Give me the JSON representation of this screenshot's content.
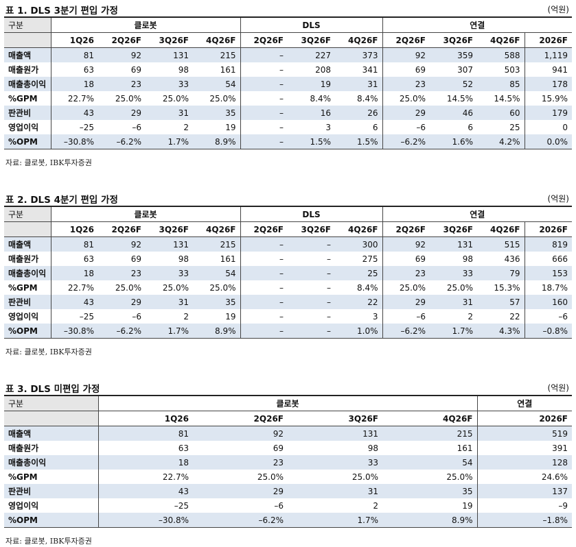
{
  "tables": [
    {
      "title": "표 1. DLS 3분기 편입 가정",
      "unit": "(억원)",
      "gubun": "구분",
      "groups": [
        "클로봇",
        "DLS",
        "연결"
      ],
      "columns": [
        "1Q26",
        "2Q26F",
        "3Q26F",
        "4Q26F",
        "2Q26F",
        "3Q26F",
        "4Q26F",
        "2Q26F",
        "3Q26F",
        "4Q26F",
        "2026F"
      ],
      "rows": [
        {
          "label": "매출액",
          "values": [
            "81",
            "92",
            "131",
            "215",
            "–",
            "227",
            "373",
            "92",
            "359",
            "588",
            "1,119"
          ]
        },
        {
          "label": "매출원가",
          "values": [
            "63",
            "69",
            "98",
            "161",
            "–",
            "208",
            "341",
            "69",
            "307",
            "503",
            "941"
          ]
        },
        {
          "label": "매출총이익",
          "values": [
            "18",
            "23",
            "33",
            "54",
            "–",
            "19",
            "31",
            "23",
            "52",
            "85",
            "178"
          ]
        },
        {
          "label": "%GPM",
          "values": [
            "22.7%",
            "25.0%",
            "25.0%",
            "25.0%",
            "–",
            "8.4%",
            "8.4%",
            "25.0%",
            "14.5%",
            "14.5%",
            "15.9%"
          ]
        },
        {
          "label": "판관비",
          "values": [
            "43",
            "29",
            "31",
            "35",
            "–",
            "16",
            "26",
            "29",
            "46",
            "60",
            "179"
          ]
        },
        {
          "label": "영업이익",
          "values": [
            "–25",
            "–6",
            "2",
            "19",
            "–",
            "3",
            "6",
            "–6",
            "6",
            "25",
            "0"
          ]
        },
        {
          "label": "%OPM",
          "values": [
            "–30.8%",
            "–6.2%",
            "1.7%",
            "8.9%",
            "–",
            "1.5%",
            "1.5%",
            "–6.2%",
            "1.6%",
            "4.2%",
            "0.0%"
          ]
        }
      ],
      "source": "자료: 클로봇, IBK투자증권"
    },
    {
      "title": "표 2. DLS 4분기 편입 가정",
      "unit": "(억원)",
      "gubun": "구분",
      "groups": [
        "클로봇",
        "DLS",
        "연결"
      ],
      "columns": [
        "1Q26",
        "2Q26F",
        "3Q26F",
        "4Q26F",
        "2Q26F",
        "3Q26F",
        "4Q26F",
        "2Q26F",
        "3Q26F",
        "4Q26F",
        "2026F"
      ],
      "rows": [
        {
          "label": "매출액",
          "values": [
            "81",
            "92",
            "131",
            "215",
            "–",
            "–",
            "300",
            "92",
            "131",
            "515",
            "819"
          ]
        },
        {
          "label": "매출원가",
          "values": [
            "63",
            "69",
            "98",
            "161",
            "–",
            "–",
            "275",
            "69",
            "98",
            "436",
            "666"
          ]
        },
        {
          "label": "매출총이익",
          "values": [
            "18",
            "23",
            "33",
            "54",
            "–",
            "–",
            "25",
            "23",
            "33",
            "79",
            "153"
          ]
        },
        {
          "label": "%GPM",
          "values": [
            "22.7%",
            "25.0%",
            "25.0%",
            "25.0%",
            "–",
            "–",
            "8.4%",
            "25.0%",
            "25.0%",
            "15.3%",
            "18.7%"
          ]
        },
        {
          "label": "판관비",
          "values": [
            "43",
            "29",
            "31",
            "35",
            "–",
            "–",
            "22",
            "29",
            "31",
            "57",
            "160"
          ]
        },
        {
          "label": "영업이익",
          "values": [
            "–25",
            "–6",
            "2",
            "19",
            "–",
            "–",
            "3",
            "–6",
            "2",
            "22",
            "–6"
          ]
        },
        {
          "label": "%OPM",
          "values": [
            "–30.8%",
            "–6.2%",
            "1.7%",
            "8.9%",
            "–",
            "–",
            "1.0%",
            "–6.2%",
            "1.7%",
            "4.3%",
            "–0.8%"
          ]
        }
      ],
      "source": "자료: 클로봇, IBK투자증권"
    },
    {
      "title": "표 3. DLS 미편입 가정",
      "unit": "(억원)",
      "gubun": "구분",
      "groups": [
        "클로봇",
        "연결"
      ],
      "columns": [
        "1Q26",
        "2Q26F",
        "3Q26F",
        "4Q26F",
        "2026F"
      ],
      "rows": [
        {
          "label": "매출액",
          "values": [
            "81",
            "92",
            "131",
            "215",
            "519"
          ]
        },
        {
          "label": "매출원가",
          "values": [
            "63",
            "69",
            "98",
            "161",
            "391"
          ]
        },
        {
          "label": "매출총이익",
          "values": [
            "18",
            "23",
            "33",
            "54",
            "128"
          ]
        },
        {
          "label": "%GPM",
          "values": [
            "22.7%",
            "25.0%",
            "25.0%",
            "25.0%",
            "24.6%"
          ]
        },
        {
          "label": "판관비",
          "values": [
            "43",
            "29",
            "31",
            "35",
            "137"
          ]
        },
        {
          "label": "영업이익",
          "values": [
            "–25",
            "–6",
            "2",
            "19",
            "–9"
          ]
        },
        {
          "label": "%OPM",
          "values": [
            "–30.8%",
            "–6.2%",
            "1.7%",
            "8.9%",
            "–1.8%"
          ]
        }
      ],
      "source": "자료: 클로봇, IBK투자증권"
    }
  ]
}
